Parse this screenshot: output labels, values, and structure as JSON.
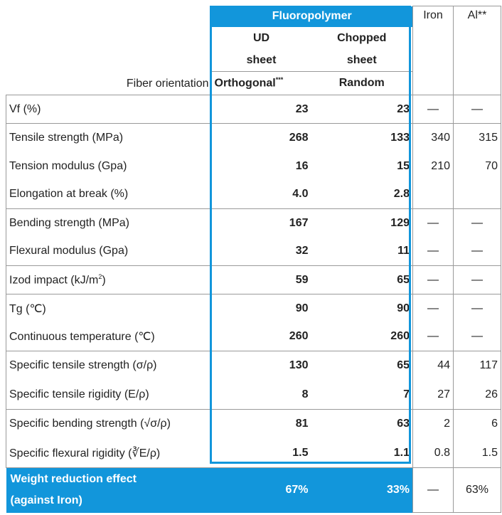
{
  "header": {
    "group": "Fluoropolymer",
    "iron": "Iron",
    "al": "Al**",
    "fiber_orientation": "Fiber orientation",
    "ud": "UD sheet",
    "chopped": "Chopped sheet",
    "ud_orientation": {
      "text": "Orthogonal",
      "sup": "***"
    },
    "chopped_orientation": "Random"
  },
  "table": {
    "rows": [
      {
        "label": "Vf (%)",
        "values": [
          "23",
          "23",
          "—",
          "—"
        ],
        "group_end": true
      },
      {
        "label": "Tensile strength (MPa)",
        "values": [
          "268",
          "133",
          "340",
          "315"
        ]
      },
      {
        "label": "Tension modulus (Gpa)",
        "values": [
          "16",
          "15",
          "210",
          "70"
        ]
      },
      {
        "label": "Elongation at break (%)",
        "values": [
          "4.0",
          "2.8",
          null,
          null
        ],
        "group_end": true
      },
      {
        "label": "Bending strength (MPa)",
        "values": [
          "167",
          "129",
          "—",
          "—"
        ]
      },
      {
        "label": "Flexural modulus (Gpa)",
        "values": [
          "32",
          "11",
          "—",
          "—"
        ],
        "group_end": true
      },
      {
        "label": {
          "text": "Izod impact (kJ/m",
          "sup": "2",
          "tail": ")"
        },
        "values": [
          "59",
          "65",
          "—",
          "—"
        ],
        "group_end": true
      },
      {
        "label": "Tg (℃)",
        "values": [
          "90",
          "90",
          "—",
          "—"
        ]
      },
      {
        "label": "Continuous temperature (℃)",
        "values": [
          "260",
          "260",
          "—",
          "—"
        ],
        "group_end": true
      },
      {
        "label": "Specific tensile strength (σ/ρ)",
        "values": [
          "130",
          "65",
          "44",
          "117"
        ]
      },
      {
        "label": "Specific tensile rigidity (E/ρ)",
        "values": [
          "8",
          "7",
          "27",
          "26"
        ],
        "group_end": true
      },
      {
        "label": "Specific bending strength (√σ/ρ)",
        "values": [
          "81",
          "63",
          "2",
          "6"
        ]
      },
      {
        "label": "Specific flexural rigidity (∛E/ρ)",
        "values": [
          "1.5",
          "1.1",
          "0.8",
          "1.5"
        ],
        "group_end": true
      }
    ],
    "total": {
      "label": "Weight reduction effect (against Iron)",
      "values": [
        "67%",
        "33%",
        "—",
        "63%"
      ]
    }
  }
}
